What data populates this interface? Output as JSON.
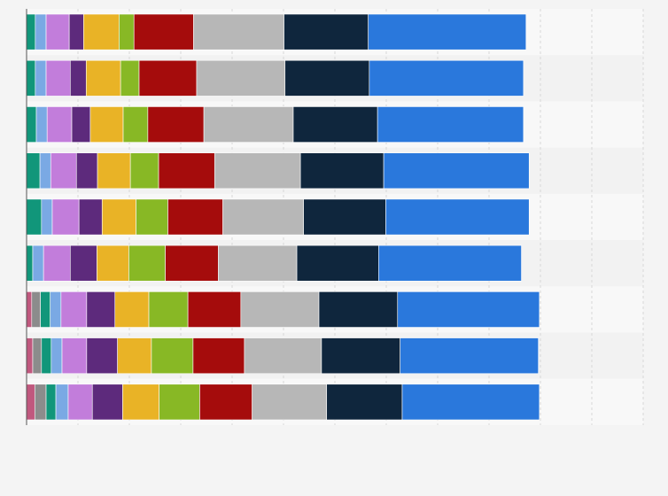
{
  "chart_data": {
    "type": "stacked-bar-horizontal",
    "categories": [
      null,
      null,
      null,
      null,
      null,
      null,
      null,
      null,
      null
    ],
    "xlim": [
      0,
      120
    ],
    "xgrid": [
      10,
      20,
      30,
      40,
      50,
      60,
      70,
      80,
      90,
      100,
      110,
      120
    ],
    "grid": true,
    "series": [
      {
        "color": "#c0587e",
        "values": [
          null,
          null,
          null,
          null,
          null,
          null,
          1.0,
          1.2,
          1.6
        ]
      },
      {
        "color": "#8c8c8c",
        "values": [
          null,
          null,
          null,
          null,
          null,
          null,
          1.7,
          1.7,
          2.2
        ]
      },
      {
        "color": "#11967a",
        "values": [
          1.7,
          1.7,
          1.9,
          2.6,
          2.9,
          1.2,
          1.9,
          1.9,
          1.9
        ]
      },
      {
        "color": "#7aa9e4",
        "values": [
          2.1,
          2.1,
          2.1,
          2.1,
          2.1,
          2.1,
          2.1,
          2.1,
          2.4
        ]
      },
      {
        "color": "#c27ddb",
        "values": [
          4.5,
          4.7,
          4.8,
          5.0,
          5.2,
          5.2,
          5.0,
          4.8,
          4.7
        ]
      },
      {
        "color": "#5d2a7c",
        "values": [
          2.8,
          3.1,
          3.6,
          4.1,
          4.5,
          5.2,
          5.5,
          6.0,
          5.9
        ]
      },
      {
        "color": "#e9b326",
        "values": [
          6.9,
          6.7,
          6.4,
          6.4,
          6.6,
          6.2,
          6.6,
          6.6,
          7.1
        ]
      },
      {
        "color": "#88b825",
        "values": [
          2.9,
          3.6,
          4.8,
          5.5,
          6.2,
          7.1,
          7.6,
          8.1,
          7.9
        ]
      },
      {
        "color": "#a50c0c",
        "values": [
          11.6,
          11.2,
          10.9,
          10.9,
          10.7,
          10.3,
          10.3,
          10.0,
          10.2
        ]
      },
      {
        "color": "#b7b7b7",
        "values": [
          17.6,
          17.2,
          17.4,
          16.7,
          15.7,
          15.3,
          15.2,
          15.0,
          14.5
        ]
      },
      {
        "color": "#0f263d",
        "values": [
          16.4,
          16.4,
          16.4,
          16.2,
          16.0,
          15.9,
          15.3,
          15.3,
          14.7
        ]
      },
      {
        "color": "#2a78dc",
        "values": [
          30.7,
          30.0,
          28.4,
          28.3,
          27.9,
          27.8,
          27.6,
          26.9,
          26.7
        ]
      }
    ]
  }
}
